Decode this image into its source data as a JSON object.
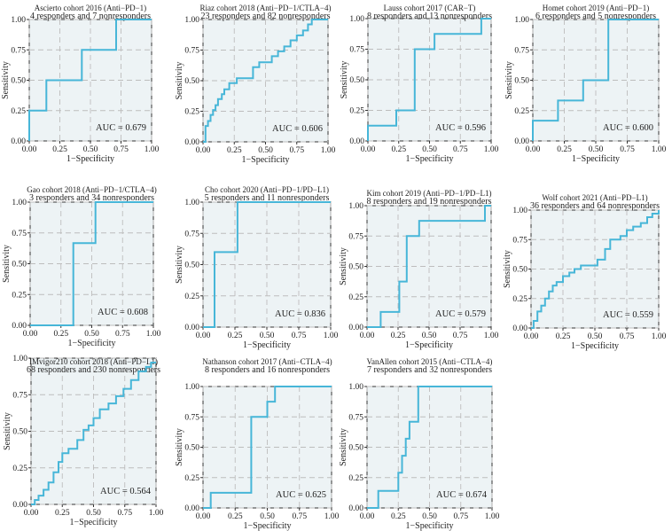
{
  "figure": {
    "ticks": [
      "0.00",
      "0.25",
      "0.50",
      "0.75",
      "1.00"
    ],
    "xlabel": "1−Specificity",
    "ylabel": "Sensitivity"
  },
  "chart_data": [
    {
      "type": "line",
      "title": "Ascierto cohort 2016 (Anti−PD−1)",
      "subtitle": "4 responders and 7 nonresponders",
      "auc": "AUC = 0.679",
      "xlabel": "1−Specificity",
      "ylabel": "Sensitivity",
      "xlim": [
        0,
        1
      ],
      "ylim": [
        0,
        1
      ],
      "grid": true,
      "series": [
        {
          "x": [
            0,
            0,
            0.14,
            0.14,
            0.43,
            0.43,
            0.71,
            0.71,
            1.0
          ],
          "y": [
            0,
            0.25,
            0.25,
            0.5,
            0.5,
            0.75,
            0.75,
            1.0,
            1.0
          ]
        }
      ]
    },
    {
      "type": "line",
      "title": "Riaz cohort 2018 (Anti−PD−1/CTLA−4)",
      "subtitle": "23 responders and 82 nonresponders",
      "auc": "AUC = 0.606",
      "xlabel": "1−Specificity",
      "ylabel": "Sensitivity",
      "xlim": [
        0,
        1
      ],
      "ylim": [
        0,
        1
      ],
      "grid": true,
      "series": [
        {
          "x": [
            0,
            0.02,
            0.02,
            0.04,
            0.04,
            0.06,
            0.06,
            0.08,
            0.08,
            0.1,
            0.1,
            0.12,
            0.12,
            0.15,
            0.15,
            0.17,
            0.17,
            0.21,
            0.21,
            0.27,
            0.27,
            0.4,
            0.4,
            0.45,
            0.45,
            0.55,
            0.55,
            0.6,
            0.6,
            0.65,
            0.65,
            0.7,
            0.7,
            0.75,
            0.75,
            0.8,
            0.8,
            0.84,
            0.84,
            0.87,
            0.87,
            1.0
          ],
          "y": [
            0,
            0,
            0.13,
            0.13,
            0.17,
            0.17,
            0.22,
            0.22,
            0.26,
            0.26,
            0.3,
            0.3,
            0.35,
            0.35,
            0.39,
            0.39,
            0.43,
            0.43,
            0.48,
            0.48,
            0.52,
            0.52,
            0.61,
            0.61,
            0.65,
            0.65,
            0.7,
            0.7,
            0.74,
            0.74,
            0.78,
            0.78,
            0.83,
            0.83,
            0.87,
            0.87,
            0.91,
            0.91,
            0.96,
            0.96,
            1.0,
            1.0
          ]
        }
      ]
    },
    {
      "type": "line",
      "title": "Lauss cohort 2017 (CAR−T)",
      "subtitle": "8 responders and 13 nonresponders",
      "auc": "AUC = 0.596",
      "xlabel": "1−Specificity",
      "ylabel": "Sensitivity",
      "xlim": [
        0,
        1
      ],
      "ylim": [
        0,
        1
      ],
      "grid": true,
      "series": [
        {
          "x": [
            0,
            0,
            0.23,
            0.23,
            0.38,
            0.38,
            0.54,
            0.54,
            0.92,
            0.92,
            1.0
          ],
          "y": [
            0,
            0.125,
            0.125,
            0.25,
            0.25,
            0.75,
            0.75,
            0.875,
            0.875,
            1.0,
            1.0
          ]
        }
      ]
    },
    {
      "type": "line",
      "title": "Homet cohort 2019 (Anti−PD−1)",
      "subtitle": "6 responders and 5 nonresponders",
      "auc": "AUC = 0.600",
      "xlabel": "1−Specificity",
      "ylabel": "Sensitivity",
      "xlim": [
        0,
        1
      ],
      "ylim": [
        0,
        1
      ],
      "grid": true,
      "series": [
        {
          "x": [
            0,
            0,
            0.2,
            0.2,
            0.4,
            0.4,
            0.6,
            0.6,
            1.0
          ],
          "y": [
            0,
            0.167,
            0.167,
            0.333,
            0.333,
            0.5,
            0.5,
            1.0,
            1.0
          ]
        }
      ]
    },
    {
      "type": "line",
      "title": "Gao cohort 2018 (Anti−PD−1/CTLA−4)",
      "subtitle": "3 responders and 34 nonresponders",
      "auc": "AUC = 0.608",
      "xlabel": "1−Specificity",
      "ylabel": "Sensitivity",
      "xlim": [
        0,
        1
      ],
      "ylim": [
        0,
        1
      ],
      "grid": true,
      "series": [
        {
          "x": [
            0,
            0.35,
            0.35,
            0.53,
            0.53,
            1.0
          ],
          "y": [
            0,
            0,
            0.667,
            0.667,
            1.0,
            1.0
          ]
        }
      ]
    },
    {
      "type": "line",
      "title": "Cho cohort 2020 (Anti−PD−1/PD−L1)",
      "subtitle": "5 responders and 11 nonresponders",
      "auc": "AUC = 0.836",
      "xlabel": "1−Specificity",
      "ylabel": "Sensitivity",
      "xlim": [
        0,
        1
      ],
      "ylim": [
        0,
        1
      ],
      "grid": true,
      "series": [
        {
          "x": [
            0,
            0.09,
            0.09,
            0.27,
            0.27,
            1.0
          ],
          "y": [
            0,
            0,
            0.6,
            0.6,
            1.0,
            1.0
          ]
        }
      ]
    },
    {
      "type": "line",
      "title": "Kim cohort 2019 (Anti−PD−1/PD−L1)",
      "subtitle": "8 responders and 19 nonresponders",
      "auc": "AUC = 0.579",
      "xlabel": "1−Specificity",
      "ylabel": "Sensitivity",
      "xlim": [
        0,
        1
      ],
      "ylim": [
        0,
        1
      ],
      "grid": true,
      "series": [
        {
          "x": [
            0,
            0.11,
            0.11,
            0.26,
            0.26,
            0.32,
            0.32,
            0.42,
            0.42,
            0.63,
            0.63,
            0.95,
            0.95,
            1.0
          ],
          "y": [
            0,
            0,
            0.125,
            0.125,
            0.375,
            0.375,
            0.75,
            0.75,
            0.875,
            0.875,
            0.875,
            0.875,
            1.0,
            1.0
          ]
        }
      ]
    },
    {
      "type": "line",
      "title": "Wolf cohort 2021 (Anti−PD−L1)",
      "subtitle": "36 responders and 64 nonresponders",
      "auc": "AUC = 0.559",
      "xlabel": "1−Specificity",
      "ylabel": "Sensitivity",
      "xlim": [
        0,
        1
      ],
      "ylim": [
        0,
        1
      ],
      "grid": true,
      "series": [
        {
          "x": [
            0,
            0.02,
            0.02,
            0.05,
            0.05,
            0.08,
            0.08,
            0.11,
            0.11,
            0.14,
            0.14,
            0.17,
            0.17,
            0.2,
            0.2,
            0.25,
            0.25,
            0.3,
            0.3,
            0.34,
            0.34,
            0.39,
            0.39,
            0.52,
            0.52,
            0.58,
            0.58,
            0.62,
            0.62,
            0.7,
            0.7,
            0.75,
            0.75,
            0.8,
            0.8,
            0.86,
            0.86,
            0.91,
            0.91,
            0.95,
            0.95,
            1.0,
            1.0
          ],
          "y": [
            0,
            0,
            0.06,
            0.06,
            0.14,
            0.14,
            0.19,
            0.19,
            0.25,
            0.25,
            0.31,
            0.31,
            0.36,
            0.36,
            0.39,
            0.39,
            0.44,
            0.44,
            0.47,
            0.47,
            0.5,
            0.5,
            0.53,
            0.53,
            0.58,
            0.58,
            0.67,
            0.67,
            0.75,
            0.75,
            0.78,
            0.78,
            0.83,
            0.83,
            0.86,
            0.86,
            0.89,
            0.89,
            0.94,
            0.94,
            0.97,
            0.97,
            1.0
          ]
        }
      ]
    },
    {
      "type": "line",
      "title": "IMvigor210 cohort 2018 (Anti−PD−L1)",
      "subtitle": "68 responders and 230 nonresponders",
      "auc": "AUC = 0.564",
      "xlabel": "1−Specificity",
      "ylabel": "Sensitivity",
      "xlim": [
        0,
        1
      ],
      "ylim": [
        0,
        1
      ],
      "grid": true,
      "series": [
        {
          "x": [
            0,
            0.03,
            0.03,
            0.06,
            0.06,
            0.1,
            0.1,
            0.14,
            0.14,
            0.18,
            0.18,
            0.22,
            0.22,
            0.25,
            0.25,
            0.3,
            0.3,
            0.37,
            0.37,
            0.42,
            0.42,
            0.46,
            0.46,
            0.5,
            0.5,
            0.55,
            0.55,
            0.62,
            0.62,
            0.68,
            0.68,
            0.74,
            0.74,
            0.8,
            0.8,
            0.86,
            0.86,
            0.92,
            0.92,
            0.96,
            0.96,
            1.0
          ],
          "y": [
            0,
            0,
            0.03,
            0.03,
            0.06,
            0.06,
            0.1,
            0.1,
            0.15,
            0.15,
            0.22,
            0.22,
            0.29,
            0.29,
            0.35,
            0.35,
            0.38,
            0.38,
            0.44,
            0.44,
            0.51,
            0.51,
            0.54,
            0.54,
            0.59,
            0.59,
            0.65,
            0.65,
            0.69,
            0.69,
            0.74,
            0.74,
            0.79,
            0.79,
            0.85,
            0.85,
            0.91,
            0.91,
            0.94,
            0.94,
            0.97,
            0.97
          ]
        }
      ]
    },
    {
      "type": "line",
      "title": "Nathanson cohort 2017 (Anti−CTLA−4)",
      "subtitle": "8 responders and 16 nonresponders",
      "auc": "AUC = 0.625",
      "xlabel": "1−Specificity",
      "ylabel": "Sensitivity",
      "xlim": [
        0,
        1
      ],
      "ylim": [
        0,
        1
      ],
      "grid": true,
      "series": [
        {
          "x": [
            0,
            0.06,
            0.06,
            0.375,
            0.375,
            0.5,
            0.5,
            0.56,
            0.56,
            1.0
          ],
          "y": [
            0,
            0,
            0.125,
            0.125,
            0.75,
            0.75,
            0.875,
            0.875,
            1.0,
            1.0
          ]
        }
      ]
    },
    {
      "type": "line",
      "title": "VanAllen cohort 2015 (Anti−CTLA−4)",
      "subtitle": "7 responders and 32 nonresponders",
      "auc": "AUC = 0.674",
      "xlabel": "1−Specificity",
      "ylabel": "Sensitivity",
      "xlim": [
        0,
        1
      ],
      "ylim": [
        0,
        1
      ],
      "grid": true,
      "series": [
        {
          "x": [
            0,
            0.09,
            0.09,
            0.25,
            0.25,
            0.28,
            0.28,
            0.31,
            0.31,
            0.34,
            0.34,
            0.41,
            0.41,
            0.47,
            0.47,
            1.0
          ],
          "y": [
            0,
            0,
            0.14,
            0.14,
            0.29,
            0.29,
            0.43,
            0.43,
            0.57,
            0.57,
            0.71,
            0.71,
            1.0,
            1.0,
            1.0,
            1.0
          ]
        }
      ]
    }
  ]
}
